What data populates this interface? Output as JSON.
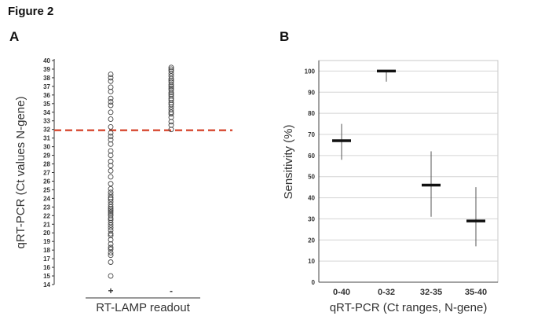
{
  "figure_title": "Figure 2",
  "chart_data": [
    {
      "panel": "A",
      "type": "scatter",
      "title": "",
      "xlabel": "RT-LAMP readout",
      "ylabel": "qRT-PCR (Ct values N-gene)",
      "ylim": [
        14,
        40
      ],
      "yticks": [
        14,
        15,
        16,
        17,
        18,
        19,
        20,
        21,
        22,
        23,
        24,
        25,
        26,
        27,
        28,
        29,
        30,
        31,
        32,
        33,
        34,
        35,
        36,
        37,
        38,
        39,
        40
      ],
      "categories": [
        "+",
        "-"
      ],
      "threshold": 31.9,
      "threshold_color": "#d9523b",
      "series": [
        {
          "name": "+",
          "values": [
            15.0,
            16.6,
            17.4,
            17.7,
            18.1,
            18.3,
            18.7,
            19.2,
            19.7,
            19.9,
            20.3,
            20.6,
            20.9,
            21.2,
            21.5,
            21.7,
            22.0,
            22.2,
            22.4,
            22.6,
            22.8,
            23.0,
            23.3,
            23.6,
            23.9,
            24.1,
            24.4,
            24.7,
            25.1,
            25.7,
            26.5,
            27.2,
            27.8,
            28.3,
            29.0,
            29.5,
            30.3,
            30.8,
            31.2,
            31.6,
            32.3,
            33.2,
            34.0,
            34.8,
            35.2,
            35.6,
            36.4,
            36.9,
            37.6,
            38.0,
            38.4
          ]
        },
        {
          "name": "-",
          "values": [
            32.0,
            32.5,
            32.9,
            33.4,
            33.8,
            34.0,
            34.3,
            34.6,
            34.9,
            35.1,
            35.4,
            35.6,
            35.9,
            36.1,
            36.3,
            36.6,
            36.8,
            37.0,
            37.2,
            37.5,
            37.7,
            37.9,
            38.2,
            38.5,
            38.8,
            39.0,
            39.2
          ]
        }
      ]
    },
    {
      "panel": "B",
      "type": "errorbar",
      "title": "",
      "xlabel": "qRT-PCR (Ct ranges, N-gene)",
      "ylabel": "Sensitivity (%)",
      "ylim": [
        0,
        105
      ],
      "yticks": [
        0,
        10,
        20,
        30,
        40,
        50,
        60,
        70,
        80,
        90,
        100
      ],
      "categories": [
        "0-40",
        "0-32",
        "32-35",
        "35-40"
      ],
      "values": [
        67,
        100,
        46,
        29
      ],
      "lower": [
        58,
        95,
        31,
        17
      ],
      "upper": [
        75,
        100,
        62,
        45
      ],
      "grid": true
    }
  ]
}
